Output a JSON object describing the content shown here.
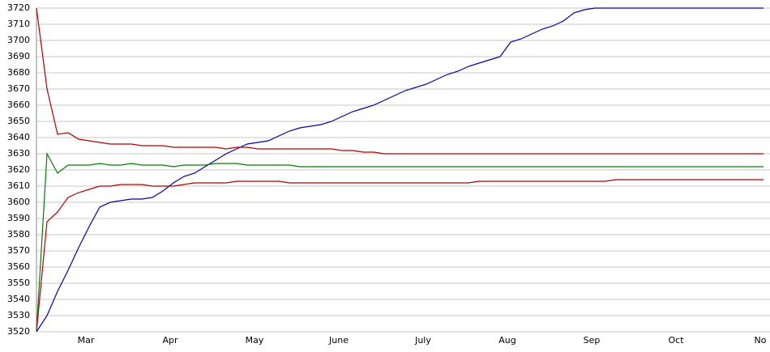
{
  "chart_data": {
    "type": "line",
    "categories": [
      null,
      null,
      null,
      null,
      null,
      "Mar",
      null,
      null,
      null,
      null,
      null,
      null,
      null,
      "Apr",
      null,
      null,
      null,
      null,
      null,
      null,
      null,
      "May",
      null,
      null,
      null,
      null,
      null,
      null,
      null,
      "June",
      null,
      null,
      null,
      null,
      null,
      null,
      null,
      "July",
      null,
      null,
      null,
      null,
      null,
      null,
      null,
      "Aug",
      null,
      null,
      null,
      null,
      null,
      null,
      null,
      "Sep",
      null,
      null,
      null,
      null,
      null,
      null,
      null,
      "Oct",
      null,
      null,
      null,
      null,
      null,
      null,
      null,
      "No"
    ],
    "ylim": [
      3520,
      3720
    ],
    "yticks": [
      3520,
      3530,
      3540,
      3550,
      3560,
      3570,
      3580,
      3590,
      3600,
      3610,
      3620,
      3630,
      3640,
      3650,
      3660,
      3670,
      3680,
      3690,
      3700,
      3710,
      3720
    ],
    "grid": true,
    "series": [
      {
        "color": "#0000b4",
        "values": [
          3520,
          3530,
          3545,
          3558,
          3572,
          3585,
          3597,
          3600,
          3601,
          3602,
          3602,
          3603,
          3607,
          3612,
          3616,
          3618,
          3622,
          3626,
          3630,
          3633,
          3636,
          3637,
          3638,
          3641,
          3644,
          3646,
          3647,
          3648,
          3650,
          3653,
          3656,
          3658,
          3660,
          3663,
          3666,
          3669,
          3671,
          3673,
          3676,
          3679,
          3681,
          3684,
          3686,
          3688,
          3690,
          3699,
          3701,
          3704,
          3707,
          3709,
          3712,
          3717,
          3719,
          3720,
          3720,
          3720,
          3720,
          3720,
          3720,
          3720,
          3720,
          3720,
          3720,
          3720,
          3720,
          3720,
          3720,
          3720,
          3720,
          3720
        ]
      },
      {
        "color": "#b40000",
        "values": [
          3720,
          3670,
          3642,
          3643,
          3639,
          3638,
          3637,
          3636,
          3636,
          3636,
          3635,
          3635,
          3635,
          3634,
          3634,
          3634,
          3634,
          3634,
          3633,
          3634,
          3634,
          3633,
          3633,
          3633,
          3633,
          3633,
          3633,
          3633,
          3633,
          3632,
          3632,
          3631,
          3631,
          3630,
          3630,
          3630,
          3630,
          3630,
          3630,
          3630,
          3630,
          3630,
          3630,
          3630,
          3630,
          3630,
          3630,
          3630,
          3630,
          3630,
          3630,
          3630,
          3630,
          3630,
          3630,
          3630,
          3630,
          3630,
          3630,
          3630,
          3630,
          3630,
          3630,
          3630,
          3630,
          3630,
          3630,
          3630,
          3630,
          3630
        ]
      },
      {
        "color": "#008000",
        "values": [
          3520,
          3630,
          3618,
          3623,
          3623,
          3623,
          3624,
          3623,
          3623,
          3624,
          3623,
          3623,
          3623,
          3622,
          3623,
          3623,
          3623,
          3624,
          3624,
          3624,
          3623,
          3623,
          3623,
          3623,
          3623,
          3622,
          3622,
          3622,
          3622,
          3622,
          3622,
          3622,
          3622,
          3622,
          3622,
          3622,
          3622,
          3622,
          3622,
          3622,
          3622,
          3622,
          3622,
          3622,
          3622,
          3622,
          3622,
          3622,
          3622,
          3622,
          3622,
          3622,
          3622,
          3622,
          3622,
          3622,
          3622,
          3622,
          3622,
          3622,
          3622,
          3622,
          3622,
          3622,
          3622,
          3622,
          3622,
          3622,
          3622,
          3622
        ]
      },
      {
        "color": "#b40000",
        "values": [
          3520,
          3588,
          3594,
          3603,
          3606,
          3608,
          3610,
          3610,
          3611,
          3611,
          3611,
          3610,
          3610,
          3610,
          3611,
          3612,
          3612,
          3612,
          3612,
          3613,
          3613,
          3613,
          3613,
          3613,
          3612,
          3612,
          3612,
          3612,
          3612,
          3612,
          3612,
          3612,
          3612,
          3612,
          3612,
          3612,
          3612,
          3612,
          3612,
          3612,
          3612,
          3612,
          3613,
          3613,
          3613,
          3613,
          3613,
          3613,
          3613,
          3613,
          3613,
          3613,
          3613,
          3613,
          3613,
          3614,
          3614,
          3614,
          3614,
          3614,
          3614,
          3614,
          3614,
          3614,
          3614,
          3614,
          3614,
          3614,
          3614,
          3614
        ]
      }
    ]
  }
}
